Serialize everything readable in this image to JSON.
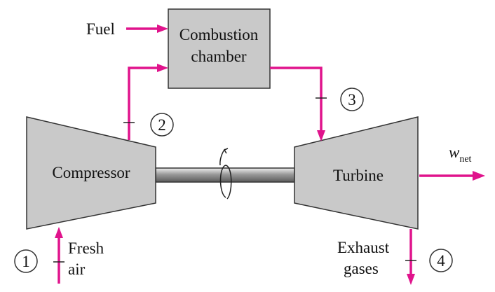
{
  "diagram": {
    "fuel_label": "Fuel",
    "combustion_line1": "Combustion",
    "combustion_line2": "chamber",
    "compressor_label": "Compressor",
    "turbine_label": "Turbine",
    "work_symbol": "w",
    "work_subscript": "net",
    "fresh_line1": "Fresh",
    "fresh_line2": "air",
    "exhaust_line1": "Exhaust",
    "exhaust_line2": "gases",
    "state_1": "1",
    "state_2": "2",
    "state_3": "3",
    "state_4": "4"
  },
  "colors": {
    "flow_arrow": "#e0138c",
    "component_fill": "#c9c9c9",
    "outline": "#333333"
  }
}
